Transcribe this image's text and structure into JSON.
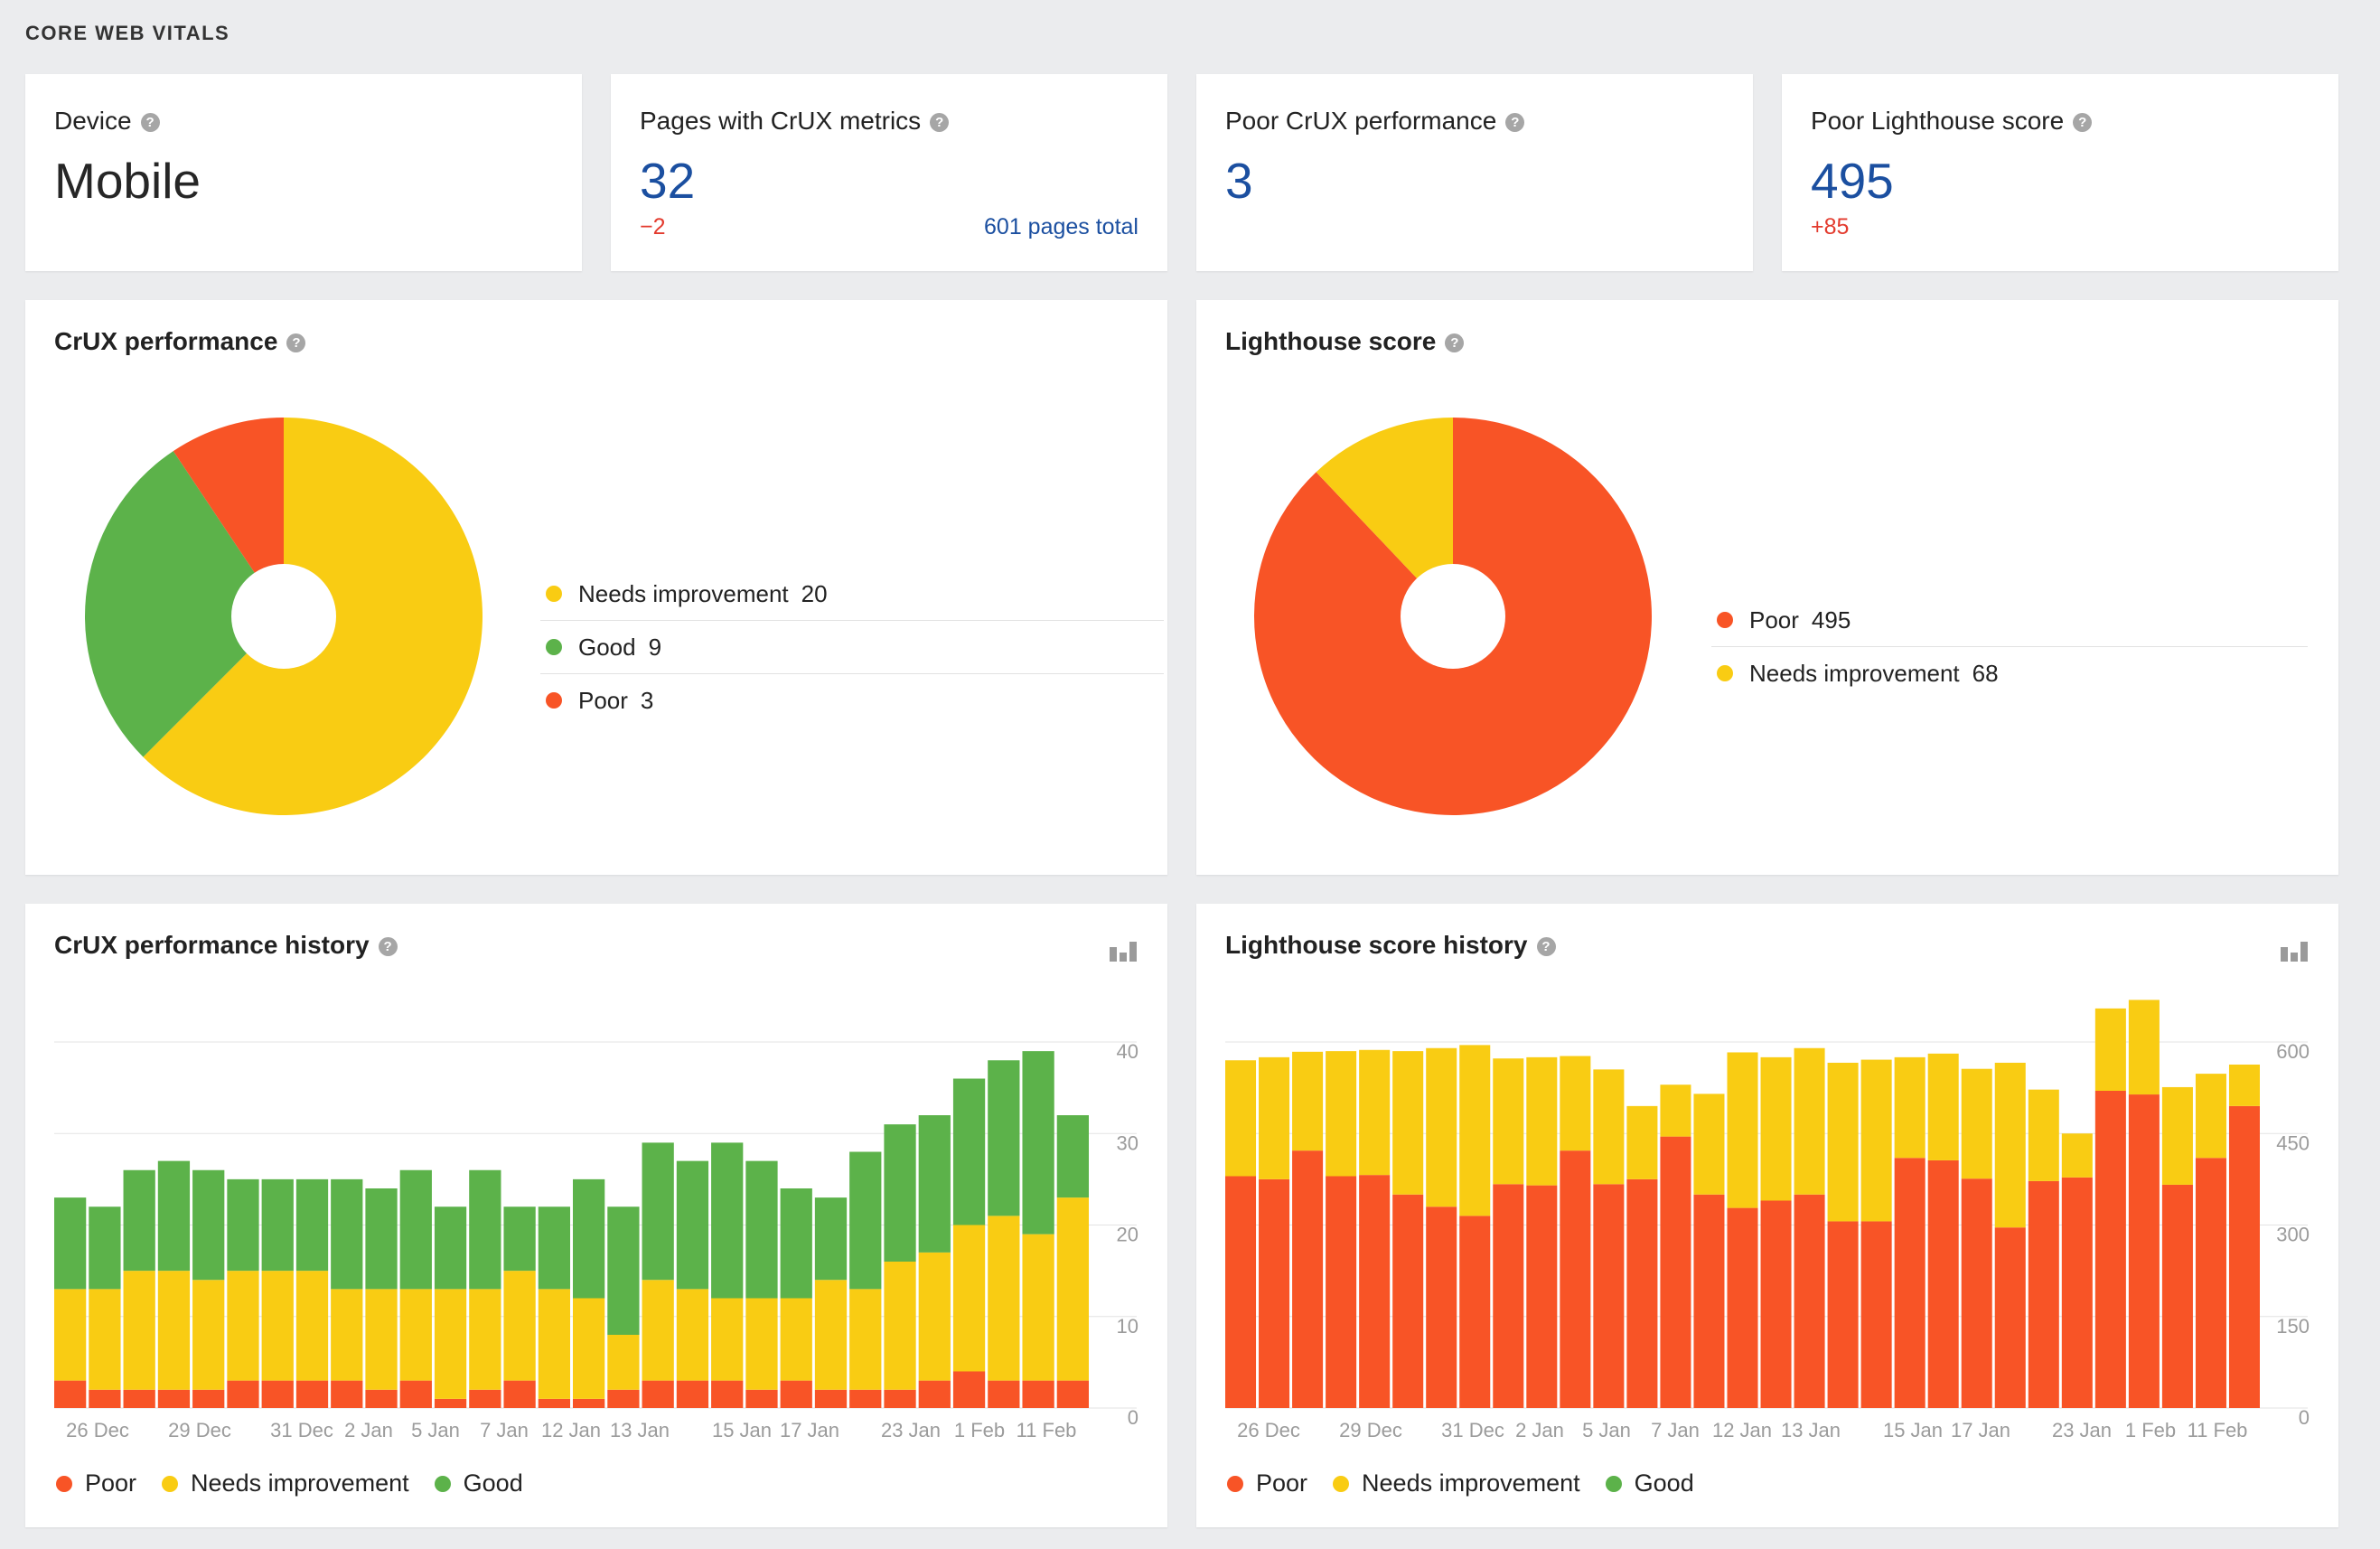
{
  "section_title": "CORE WEB VITALS",
  "colors": {
    "poor": "#f85426",
    "needs": "#f9cc13",
    "good": "#5cb24a",
    "blue": "#1b4fa0",
    "red": "#e33b2e"
  },
  "kpis": {
    "device": {
      "label": "Device",
      "value": "Mobile"
    },
    "crux_pages": {
      "label": "Pages with CrUX metrics",
      "value": "32",
      "delta": "−2",
      "link": "601 pages total"
    },
    "poor_crux": {
      "label": "Poor CrUX performance",
      "value": "3"
    },
    "poor_lighthouse": {
      "label": "Poor Lighthouse score",
      "value": "495",
      "delta": "+85"
    }
  },
  "crux_pie": {
    "title": "CrUX performance",
    "legend": [
      {
        "label": "Needs improvement",
        "value": "20",
        "color": "#f9cc13"
      },
      {
        "label": "Good",
        "value": "9",
        "color": "#5cb24a"
      },
      {
        "label": "Poor",
        "value": "3",
        "color": "#f85426"
      }
    ]
  },
  "lighthouse_pie": {
    "title": "Lighthouse score",
    "legend": [
      {
        "label": "Poor",
        "value": "495",
        "color": "#f85426"
      },
      {
        "label": "Needs improvement",
        "value": "68",
        "color": "#f9cc13"
      }
    ]
  },
  "crux_history": {
    "title": "CrUX performance history"
  },
  "lighthouse_history": {
    "title": "Lighthouse score history"
  },
  "history_legend": [
    {
      "label": "Poor",
      "color": "#f85426"
    },
    {
      "label": "Needs improvement",
      "color": "#f9cc13"
    },
    {
      "label": "Good",
      "color": "#5cb24a"
    }
  ],
  "chart_data": [
    {
      "type": "pie",
      "title": "CrUX performance",
      "slices": [
        {
          "label": "Needs improvement",
          "value": 20
        },
        {
          "label": "Good",
          "value": 9
        },
        {
          "label": "Poor",
          "value": 3
        }
      ]
    },
    {
      "type": "pie",
      "title": "Lighthouse score",
      "slices": [
        {
          "label": "Poor",
          "value": 495
        },
        {
          "label": "Needs improvement",
          "value": 68
        }
      ]
    },
    {
      "type": "bar",
      "stacked": true,
      "title": "CrUX performance history",
      "ylim": [
        0,
        40
      ],
      "yticks": [
        "0",
        "10",
        "20",
        "30",
        "40"
      ],
      "xtick_labels": [
        "26 Dec",
        "29 Dec",
        "31 Dec",
        "2 Jan",
        "5 Jan",
        "7 Jan",
        "12 Jan",
        "13 Jan",
        "15 Jan",
        "17 Jan",
        "23 Jan",
        "1 Feb",
        "11 Feb"
      ],
      "series": [
        {
          "name": "Poor",
          "values": [
            3,
            2,
            2,
            2,
            2,
            3,
            3,
            3,
            3,
            2,
            3,
            1,
            2,
            3,
            1,
            1,
            2,
            3,
            3,
            3,
            2,
            3,
            2,
            2,
            2,
            3,
            4,
            3,
            3,
            3
          ]
        },
        {
          "name": "Needs improvement",
          "values": [
            10,
            11,
            13,
            13,
            12,
            12,
            12,
            12,
            10,
            11,
            10,
            12,
            11,
            12,
            12,
            11,
            6,
            11,
            10,
            9,
            10,
            9,
            12,
            11,
            14,
            14,
            16,
            18,
            16,
            20
          ]
        },
        {
          "name": "Good",
          "values": [
            10,
            9,
            11,
            12,
            12,
            10,
            10,
            10,
            12,
            11,
            13,
            9,
            13,
            7,
            9,
            13,
            14,
            15,
            14,
            17,
            15,
            12,
            9,
            15,
            15,
            15,
            16,
            17,
            20,
            9
          ]
        }
      ]
    },
    {
      "type": "bar",
      "stacked": true,
      "title": "Lighthouse score history",
      "ylim": [
        0,
        600
      ],
      "yticks": [
        "0",
        "150",
        "300",
        "450",
        "600"
      ],
      "xtick_labels": [
        "26 Dec",
        "29 Dec",
        "31 Dec",
        "2 Jan",
        "5 Jan",
        "7 Jan",
        "12 Jan",
        "13 Jan",
        "15 Jan",
        "17 Jan",
        "23 Jan",
        "1 Feb",
        "11 Feb"
      ],
      "series": [
        {
          "name": "Poor",
          "values": [
            380,
            375,
            422,
            380,
            382,
            350,
            330,
            315,
            367,
            365,
            422,
            367,
            375,
            445,
            350,
            328,
            340,
            350,
            306,
            306,
            410,
            406,
            376,
            296,
            372,
            378,
            520,
            514,
            366,
            410,
            495
          ]
        },
        {
          "name": "Needs improvement",
          "values": [
            190,
            200,
            162,
            205,
            205,
            235,
            260,
            280,
            206,
            210,
            155,
            188,
            120,
            85,
            165,
            255,
            235,
            240,
            260,
            265,
            165,
            175,
            180,
            270,
            150,
            72,
            135,
            155,
            160,
            138,
            68
          ]
        },
        {
          "name": "Good",
          "values": [
            0,
            0,
            0,
            0,
            0,
            0,
            0,
            0,
            0,
            0,
            0,
            0,
            0,
            0,
            0,
            0,
            0,
            0,
            0,
            0,
            0,
            0,
            0,
            0,
            0,
            0,
            0,
            0,
            0,
            0,
            0
          ]
        }
      ]
    }
  ]
}
